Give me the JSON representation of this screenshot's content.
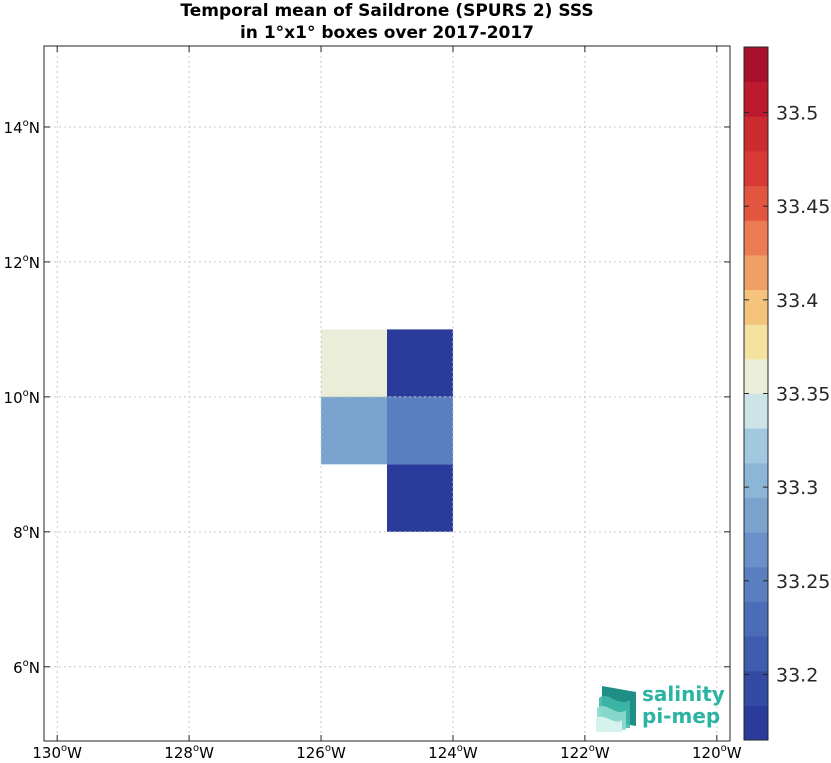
{
  "chart_data": {
    "type": "heatmap",
    "title_lines": [
      "Temporal mean of Saildrone (SPURS 2) SSS",
      "in 1°x1° boxes over 2017-2017"
    ],
    "xlim": [
      -130.2,
      -119.8
    ],
    "ylim": [
      4.9,
      15.2
    ],
    "x_ticks": [
      {
        "value": -130,
        "label": "130°W"
      },
      {
        "value": -128,
        "label": "128°W"
      },
      {
        "value": -126,
        "label": "126°W"
      },
      {
        "value": -124,
        "label": "124°W"
      },
      {
        "value": -122,
        "label": "122°W"
      },
      {
        "value": -120,
        "label": "120°W"
      }
    ],
    "y_ticks": [
      {
        "value": 6,
        "label": "6°N"
      },
      {
        "value": 8,
        "label": "8°N"
      },
      {
        "value": 10,
        "label": "10°N"
      },
      {
        "value": 12,
        "label": "12°N"
      },
      {
        "value": 14,
        "label": "14°N"
      }
    ],
    "grid": true,
    "cells": [
      {
        "lon_min": -126,
        "lon_max": -125,
        "lat_min": 10,
        "lat_max": 11,
        "value": 33.355
      },
      {
        "lon_min": -125,
        "lon_max": -124,
        "lat_min": 10,
        "lat_max": 11,
        "value": 33.18
      },
      {
        "lon_min": -126,
        "lon_max": -125,
        "lat_min": 9,
        "lat_max": 10,
        "value": 33.285
      },
      {
        "lon_min": -125,
        "lon_max": -124,
        "lat_min": 9,
        "lat_max": 10,
        "value": 33.245
      },
      {
        "lon_min": -125,
        "lon_max": -124,
        "lat_min": 8,
        "lat_max": 9,
        "value": 33.18
      }
    ],
    "colorbar": {
      "min": 33.165,
      "max": 33.535,
      "step": 0.0185,
      "colors": [
        "#2b3b9c",
        "#344ba6",
        "#3f5cae",
        "#4b6db8",
        "#5a7fc0",
        "#6b91c8",
        "#7aa4cd",
        "#8bb6d6",
        "#a1c8de",
        "#cce4e8",
        "#eaedd7",
        "#f5e1a0",
        "#f4c47c",
        "#f0a066",
        "#ea7b53",
        "#e25541",
        "#d83a35",
        "#cc2b30",
        "#bd1b2d",
        "#a8102b"
      ],
      "ticks": [
        {
          "value": 33.2,
          "label": "33.2"
        },
        {
          "value": 33.25,
          "label": "33.25"
        },
        {
          "value": 33.3,
          "label": "33.3"
        },
        {
          "value": 33.35,
          "label": "33.35"
        },
        {
          "value": 33.4,
          "label": "33.4"
        },
        {
          "value": 33.45,
          "label": "33.45"
        },
        {
          "value": 33.5,
          "label": "33.5"
        }
      ]
    }
  },
  "logo": {
    "line1": "salinity",
    "line2": "pi-mep"
  }
}
